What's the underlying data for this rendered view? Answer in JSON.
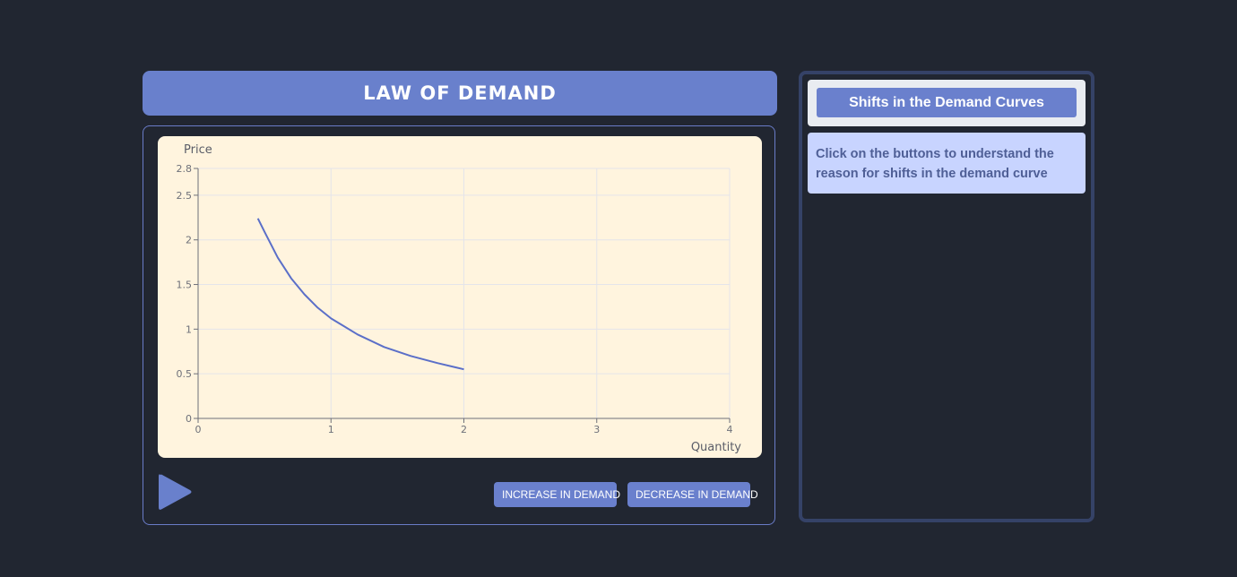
{
  "header": {
    "title": "LAW OF DEMAND"
  },
  "chart_data": {
    "type": "line",
    "title": "",
    "xlabel": "Quantity",
    "ylabel": "Price",
    "xlim": [
      0,
      4
    ],
    "ylim": [
      0,
      2.8
    ],
    "x_ticks": [
      "0",
      "1",
      "2",
      "3",
      "4"
    ],
    "y_ticks": [
      "0",
      "0.5",
      "1",
      "1.5",
      "2",
      "2.5",
      "2.8"
    ],
    "grid": true,
    "series": [
      {
        "x": [
          0.45,
          0.5,
          0.6,
          0.7,
          0.8,
          0.9,
          1.0,
          1.2,
          1.4,
          1.6,
          1.8,
          2.0
        ],
        "values": [
          2.24,
          2.09,
          1.8,
          1.57,
          1.39,
          1.24,
          1.12,
          0.94,
          0.8,
          0.7,
          0.62,
          0.55
        ]
      }
    ],
    "colors": {
      "line": "#5b6fc8",
      "background": "#fff4de",
      "grid": "#e4e4ea",
      "axis": "#6e7079"
    }
  },
  "controls": {
    "play_icon": "play-icon",
    "increase_label": "INCREASE IN DEMAND",
    "decrease_label": "DECREASE IN DEMAND"
  },
  "side_panel": {
    "title": "Shifts in the Demand Curves",
    "description": "Click on the buttons to understand the reason for shifts in the demand curve"
  },
  "colors": {
    "background": "#212631",
    "accent": "#6980cc",
    "panel_border": "#354267",
    "info_bg": "#c8d4ff",
    "info_text": "#4f5f96"
  }
}
